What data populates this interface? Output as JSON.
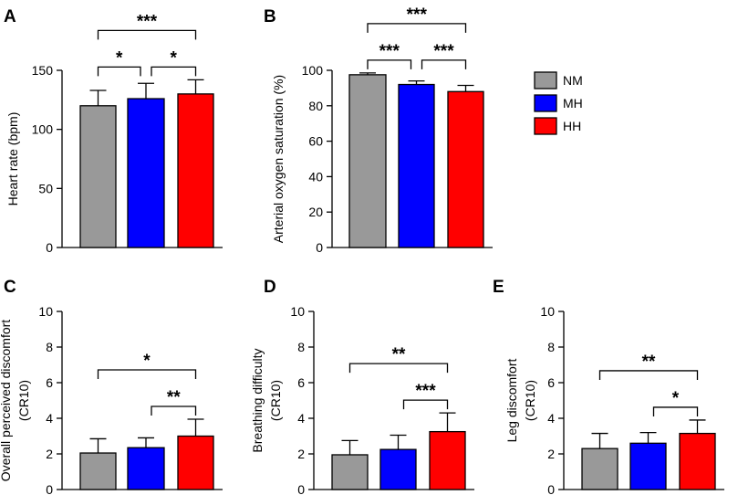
{
  "legend": [
    {
      "label": "NM",
      "color": "#999999"
    },
    {
      "label": "MH",
      "color": "#0000ff"
    },
    {
      "label": "HH",
      "color": "#ff0000"
    }
  ],
  "chart_data": [
    {
      "panel": "A",
      "type": "bar",
      "ylabel": [
        "Heart rate (bpm)"
      ],
      "ylim": [
        0,
        150
      ],
      "yticks": [
        0,
        50,
        100,
        150
      ],
      "categories": [
        "NM",
        "MH",
        "HH"
      ],
      "values": [
        120,
        126,
        130
      ],
      "errors": [
        13,
        13,
        12
      ],
      "colors": [
        "#999999",
        "#0000ff",
        "#ff0000"
      ],
      "significance": [
        {
          "from": 0,
          "to": 1,
          "label": "*"
        },
        {
          "from": 1,
          "to": 2,
          "label": "*"
        },
        {
          "from": 0,
          "to": 2,
          "label": "***"
        }
      ]
    },
    {
      "panel": "B",
      "type": "bar",
      "ylabel": [
        "Arterial oxygen saturation (%)"
      ],
      "ylim": [
        0,
        100
      ],
      "yticks": [
        0,
        20,
        40,
        60,
        80,
        100
      ],
      "categories": [
        "NM",
        "MH",
        "HH"
      ],
      "values": [
        97.5,
        92,
        88
      ],
      "errors": [
        1,
        2,
        3.5
      ],
      "colors": [
        "#999999",
        "#0000ff",
        "#ff0000"
      ],
      "significance": [
        {
          "from": 0,
          "to": 1,
          "label": "***"
        },
        {
          "from": 1,
          "to": 2,
          "label": "***"
        },
        {
          "from": 0,
          "to": 2,
          "label": "***"
        }
      ]
    },
    {
      "panel": "C",
      "type": "bar",
      "ylabel": [
        "Overall perceived discomfort",
        "(CR10)"
      ],
      "ylim": [
        0,
        10
      ],
      "yticks": [
        0,
        2,
        4,
        6,
        8,
        10
      ],
      "categories": [
        "NM",
        "MH",
        "HH"
      ],
      "values": [
        2.05,
        2.35,
        3.0
      ],
      "errors": [
        0.8,
        0.55,
        0.95
      ],
      "colors": [
        "#999999",
        "#0000ff",
        "#ff0000"
      ],
      "significance": [
        {
          "from": 0,
          "to": 2,
          "label": "*"
        },
        {
          "from": 1,
          "to": 2,
          "label": "**"
        }
      ]
    },
    {
      "panel": "D",
      "type": "bar",
      "ylabel": [
        "Breathing difficulty",
        "(CR10)"
      ],
      "ylim": [
        0,
        10
      ],
      "yticks": [
        0,
        2,
        4,
        6,
        8,
        10
      ],
      "categories": [
        "NM",
        "MH",
        "HH"
      ],
      "values": [
        1.95,
        2.25,
        3.25
      ],
      "errors": [
        0.8,
        0.8,
        1.05
      ],
      "colors": [
        "#999999",
        "#0000ff",
        "#ff0000"
      ],
      "significance": [
        {
          "from": 0,
          "to": 2,
          "label": "**"
        },
        {
          "from": 1,
          "to": 2,
          "label": "***"
        }
      ]
    },
    {
      "panel": "E",
      "type": "bar",
      "ylabel": [
        "Leg discomfort",
        "(CR10)"
      ],
      "ylim": [
        0,
        10
      ],
      "yticks": [
        0,
        2,
        4,
        6,
        8,
        10
      ],
      "categories": [
        "NM",
        "MH",
        "HH"
      ],
      "values": [
        2.3,
        2.6,
        3.15
      ],
      "errors": [
        0.85,
        0.6,
        0.75
      ],
      "colors": [
        "#999999",
        "#0000ff",
        "#ff0000"
      ],
      "significance": [
        {
          "from": 0,
          "to": 2,
          "label": "**"
        },
        {
          "from": 1,
          "to": 2,
          "label": "*"
        }
      ]
    }
  ]
}
